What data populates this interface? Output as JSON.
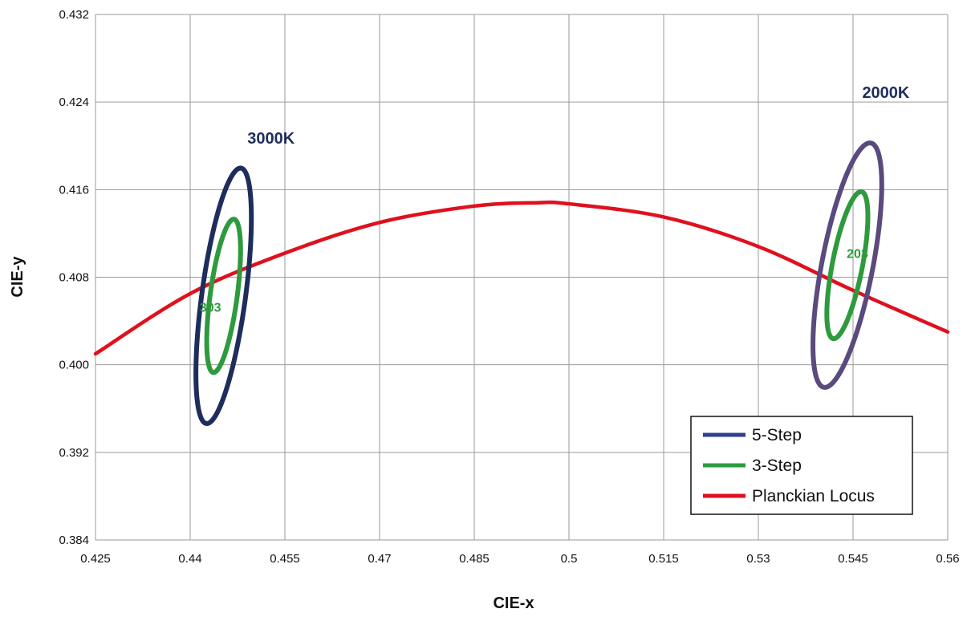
{
  "chart_data": {
    "type": "line",
    "title": "",
    "xlabel": "CIE-x",
    "ylabel": "CIE-y",
    "xlim": [
      0.425,
      0.56
    ],
    "ylim": [
      0.384,
      0.432
    ],
    "x_ticks": [
      "0.425",
      "0.44",
      "0.455",
      "0.47",
      "0.485",
      "0.5",
      "0.515",
      "0.53",
      "0.545",
      "0.56"
    ],
    "y_ticks": [
      "0.384",
      "0.392",
      "0.400",
      "0.408",
      "0.416",
      "0.424",
      "0.432"
    ],
    "grid": true,
    "legend_position": "bottom-right",
    "legend": [
      {
        "label": "5-Step",
        "color": "#2e3f8f"
      },
      {
        "label": "3-Step",
        "color": "#2e9a3e"
      },
      {
        "label": "Planckian Locus",
        "color": "#e0101e"
      }
    ],
    "series": [
      {
        "name": "Planckian Locus",
        "color": "#e0101e",
        "x": [
          0.425,
          0.44,
          0.455,
          0.47,
          0.485,
          0.495,
          0.5,
          0.515,
          0.53,
          0.545,
          0.56
        ],
        "y": [
          0.401,
          0.4065,
          0.4102,
          0.413,
          0.4145,
          0.4148,
          0.4147,
          0.4135,
          0.4108,
          0.4068,
          0.403
        ]
      }
    ],
    "ellipses": [
      {
        "group": "3000K",
        "step": "5-Step",
        "color": "#1e2d5c",
        "cx": 0.4453,
        "cy": 0.4063,
        "a": 0.012,
        "b": 0.0034,
        "angle_deg": 76
      },
      {
        "group": "3000K",
        "step": "3-Step",
        "color": "#2e9a3e",
        "cx": 0.4453,
        "cy": 0.4063,
        "a": 0.0072,
        "b": 0.0021,
        "angle_deg": 76
      },
      {
        "group": "2000K",
        "step": "5-Step",
        "color": "#5a4a7e",
        "cx": 0.5441,
        "cy": 0.4091,
        "a": 0.0118,
        "b": 0.0039,
        "angle_deg": 70
      },
      {
        "group": "2000K",
        "step": "3-Step",
        "color": "#2e9a3e",
        "cx": 0.5441,
        "cy": 0.4091,
        "a": 0.0071,
        "b": 0.0023,
        "angle_deg": 70
      }
    ],
    "annotations": [
      {
        "text": "3000K",
        "x": 0.4528,
        "y": 0.4207,
        "color": "#1e2d5c"
      },
      {
        "text": "2000K",
        "x": 0.5502,
        "y": 0.4249,
        "color": "#1e2d5c"
      },
      {
        "text": "303",
        "x": 0.4432,
        "y": 0.4053,
        "color": "#2e9a3e"
      },
      {
        "text": "203",
        "x": 0.5457,
        "y": 0.4102,
        "color": "#2e9a3e"
      }
    ]
  }
}
